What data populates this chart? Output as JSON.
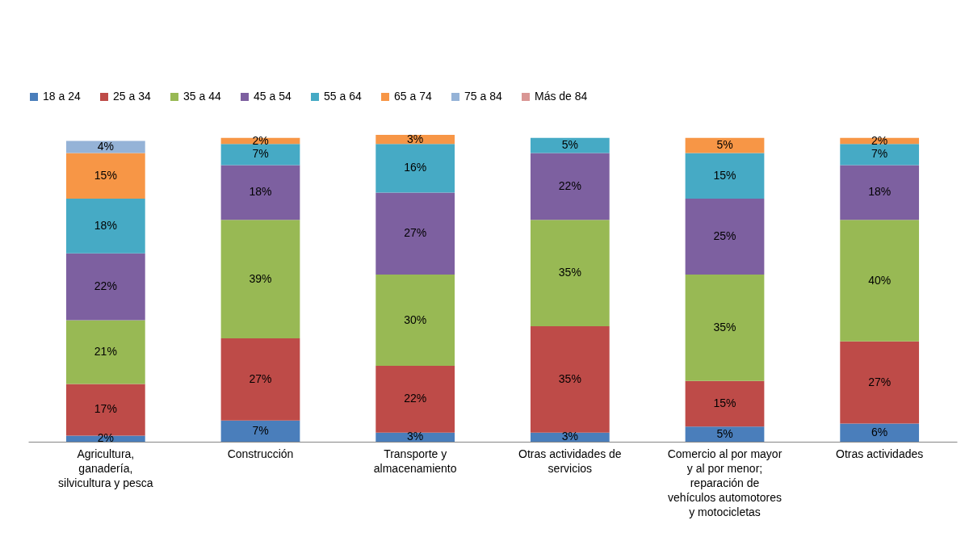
{
  "chart_data": {
    "type": "bar",
    "stacked": true,
    "legend": "top",
    "categories": [
      "Agricultura, ganadería, silvicultura y pesca",
      "Construcción",
      "Transporte y almacenamiento",
      "Otras actividades de servicios",
      "Comercio al por mayor y al por menor; reparación de vehículos automotores y motocicletas",
      "Otras actividades"
    ],
    "series": [
      {
        "name": "18 a 24",
        "color": "#4a7ebb",
        "values": [
          2,
          7,
          3,
          3,
          5,
          6
        ],
        "value_labels": [
          "2%",
          "7%",
          "3%",
          "3%",
          "5%",
          "6%"
        ]
      },
      {
        "name": "25 a 34",
        "color": "#be4b48",
        "values": [
          17,
          27,
          22,
          35,
          15,
          27
        ],
        "value_labels": [
          "17%",
          "27%",
          "22%",
          "35%",
          "15%",
          "27%"
        ]
      },
      {
        "name": "35 a 44",
        "color": "#98b954",
        "values": [
          21,
          39,
          30,
          35,
          35,
          40
        ],
        "value_labels": [
          "21%",
          "39%",
          "30%",
          "35%",
          "35%",
          "40%"
        ]
      },
      {
        "name": "45 a 54",
        "color": "#7d60a0",
        "values": [
          22,
          18,
          27,
          22,
          25,
          18
        ],
        "value_labels": [
          "22%",
          "18%",
          "27%",
          "22%",
          "25%",
          "18%"
        ]
      },
      {
        "name": "55 a 64",
        "color": "#46aac5",
        "values": [
          18,
          7,
          16,
          5,
          15,
          7
        ],
        "value_labels": [
          "18%",
          "7%",
          "16%",
          "5%",
          "15%",
          "7%"
        ]
      },
      {
        "name": "65 a 74",
        "color": "#f79646",
        "values": [
          15,
          2,
          3,
          null,
          5,
          2
        ],
        "value_labels": [
          "15%",
          "2%",
          "3%",
          null,
          "5%",
          "2%"
        ]
      },
      {
        "name": "75 a 84",
        "color": "#95b3d7",
        "values": [
          4,
          null,
          null,
          null,
          null,
          null
        ],
        "value_labels": [
          "4%",
          null,
          null,
          null,
          null,
          null
        ]
      },
      {
        "name": "Más de 84",
        "color": "#d99694",
        "values": [
          null,
          null,
          null,
          null,
          null,
          null
        ],
        "value_labels": [
          null,
          null,
          null,
          null,
          null,
          null
        ]
      }
    ]
  }
}
